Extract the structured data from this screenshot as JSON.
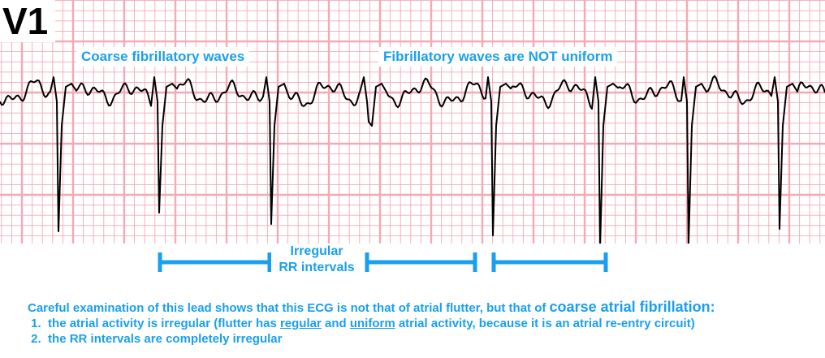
{
  "lead": "V1",
  "annotations": {
    "coarse_waves": "Coarse fibrillatory waves",
    "not_uniform": "Fibrillatory waves are NOT uniform"
  },
  "rr_label": {
    "line1": "Irregular",
    "line2": "RR intervals"
  },
  "notes": {
    "intro_text": "Careful examination of this lead shows that this ECG is not that of atrial flutter, but that of ",
    "intro_emphasis": "coarse atrial fibrillation:",
    "item1_num": "1.",
    "item1_a": "the atrial activity is irregular (flutter has ",
    "item1_u1": "regular",
    "item1_b": " and ",
    "item1_u2": "uniform",
    "item1_c": " atrial activity, because it is an atrial re-entry circuit)",
    "item2_num": "2.",
    "item2_text": "the RR intervals are completely irregular"
  },
  "colors": {
    "grid": "#f4a9b4",
    "trace": "#000000",
    "annotation": "#1a9ff0"
  }
}
